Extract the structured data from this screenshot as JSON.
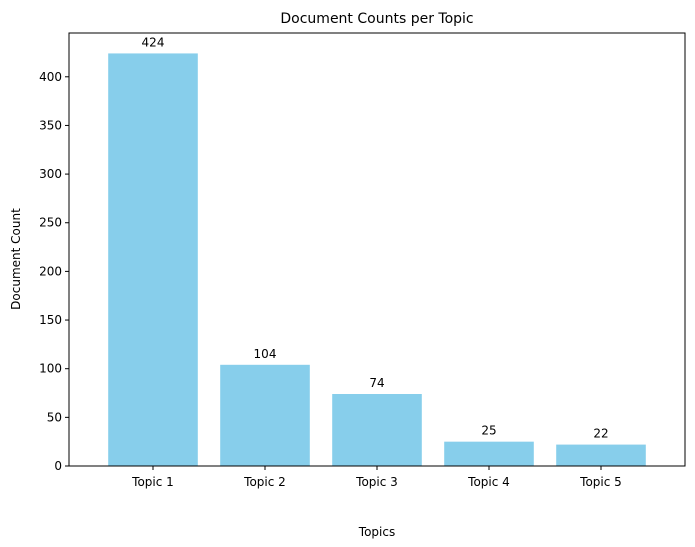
{
  "chart_data": {
    "type": "bar",
    "title": "Document Counts per Topic",
    "xlabel": "Topics",
    "ylabel": "Document Count",
    "categories": [
      "Topic 1",
      "Topic 2",
      "Topic 3",
      "Topic 4",
      "Topic 5"
    ],
    "values": [
      424,
      104,
      74,
      25,
      22
    ],
    "data_labels": [
      "424",
      "104",
      "74",
      "25",
      "22"
    ],
    "ylim": [
      0,
      445
    ],
    "yticks": [
      0,
      50,
      100,
      150,
      200,
      250,
      300,
      350,
      400
    ],
    "ytick_labels": [
      "0",
      "50",
      "100",
      "150",
      "200",
      "250",
      "300",
      "350",
      "400"
    ],
    "grid": false,
    "bar_color": "#87ceeb"
  }
}
